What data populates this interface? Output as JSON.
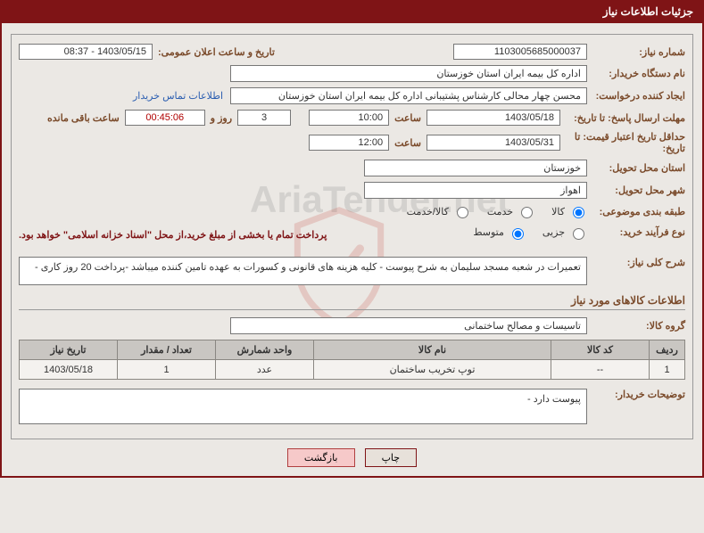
{
  "header": {
    "title": "جزئیات اطلاعات نیاز"
  },
  "labels": {
    "need_no": "شماره نیاز:",
    "announce": "تاریخ و ساعت اعلان عمومی:",
    "org": "نام دستگاه خریدار:",
    "requester": "ایجاد کننده درخواست:",
    "contact_link": "اطلاعات تماس خریدار",
    "deadline": "مهلت ارسال پاسخ: تا تاریخ:",
    "hour": "ساعت",
    "days_and": "روز و",
    "remaining": "ساعت باقی مانده",
    "validity": "حداقل تاریخ اعتبار قیمت: تا تاریخ:",
    "province": "استان محل تحویل:",
    "city": "شهر محل تحویل:",
    "category": "طبقه بندی موضوعی:",
    "cat_opts": {
      "goods": "کالا",
      "service": "خدمت",
      "goods_service": "کالا/خدمت"
    },
    "process": "نوع فرآیند خرید:",
    "proc_opts": {
      "partial": "جزیی",
      "medium": "متوسط"
    },
    "treasury_note": "پرداخت تمام یا بخشی از مبلغ خرید،از محل \"اسناد خزانه اسلامی\" خواهد بود.",
    "desc": "شرح کلی نیاز:",
    "items_title": "اطلاعات کالاهای مورد نیاز",
    "group": "گروه کالا:",
    "buyer_notes": "توضیحات خریدار:"
  },
  "values": {
    "need_no": "1103005685000037",
    "announce": "1403/05/15 - 08:37",
    "org": "اداره کل بیمه ایران استان خوزستان",
    "requester": "محسن چهار محالی کارشناس پشتیبانی اداره کل بیمه ایران استان خوزستان",
    "deadline_date": "1403/05/18",
    "deadline_time": "10:00",
    "remaining_days": "3",
    "remaining_time": "00:45:06",
    "validity_date": "1403/05/31",
    "validity_time": "12:00",
    "province": "خوزستان",
    "city": "اهواز",
    "desc": "تعمیرات در شعبه مسجد سلیمان به شرح پیوست - کلیه هزینه های قانونی و کسورات به عهده تامین کننده میباشد -پرداخت 20 روز کاری -",
    "group": "تاسیسات و مصالح ساختمانی",
    "buyer_notes": "پیوست دارد -"
  },
  "table": {
    "cols": {
      "row": "ردیف",
      "code": "کد کالا",
      "name": "نام کالا",
      "unit": "واحد شمارش",
      "qty": "تعداد / مقدار",
      "date": "تاریخ نیاز"
    },
    "rows": [
      {
        "row": "1",
        "code": "--",
        "name": "توپ تخریب ساختمان",
        "unit": "عدد",
        "qty": "1",
        "date": "1403/05/18"
      }
    ]
  },
  "buttons": {
    "print": "چاپ",
    "back": "بازگشت"
  },
  "colors": {
    "maroon": "#7f1416",
    "brown_label": "#7a4a2a",
    "th_bg": "#c9c6c2",
    "td_bg": "#f4f2ef",
    "border": "#8a8782"
  }
}
